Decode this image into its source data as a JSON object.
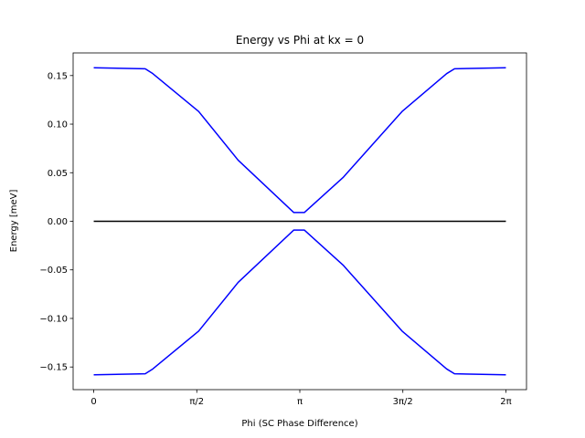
{
  "chart_data": {
    "type": "line",
    "title": "Energy vs Phi at kx = 0",
    "xlabel": "Phi (SC Phase Difference)",
    "ylabel": "Energy [meV]",
    "xlim": [
      -0.3142,
      6.5973
    ],
    "ylim": [
      -0.1733,
      0.1733
    ],
    "grid": false,
    "legend": "none",
    "x_ticks": [
      {
        "value": 0,
        "label": "0"
      },
      {
        "value": 1.5708,
        "label": "π/2"
      },
      {
        "value": 3.1416,
        "label": "π"
      },
      {
        "value": 4.7124,
        "label": "3π/2"
      },
      {
        "value": 6.2832,
        "label": "2π"
      }
    ],
    "y_ticks": [
      {
        "value": 0.15,
        "label": "0.15"
      },
      {
        "value": 0.1,
        "label": "0.10"
      },
      {
        "value": 0.05,
        "label": "0.05"
      },
      {
        "value": 0.0,
        "label": "0.00"
      },
      {
        "value": -0.05,
        "label": "−0.05"
      },
      {
        "value": -0.1,
        "label": "−0.10"
      },
      {
        "value": -0.15,
        "label": "−0.15"
      }
    ],
    "series": [
      {
        "color": "#0000ff",
        "x": [
          0,
          0.785,
          0.9,
          1.6,
          2.2,
          3.05,
          3.21,
          3.8,
          4.7,
          5.38,
          5.5,
          6.2832
        ],
        "y": [
          0.158,
          0.157,
          0.152,
          0.113,
          0.063,
          0.009,
          0.009,
          0.045,
          0.113,
          0.152,
          0.157,
          0.158
        ]
      },
      {
        "color": "#0000ff",
        "x": [
          0,
          0.785,
          0.9,
          1.6,
          2.2,
          3.05,
          3.21,
          3.8,
          4.7,
          5.38,
          5.5,
          6.2832
        ],
        "y": [
          -0.158,
          -0.157,
          -0.152,
          -0.113,
          -0.063,
          -0.009,
          -0.009,
          -0.045,
          -0.113,
          -0.152,
          -0.157,
          -0.158
        ]
      },
      {
        "color": "#000000",
        "x": [
          0,
          6.2832
        ],
        "y": [
          0,
          0
        ]
      }
    ]
  }
}
